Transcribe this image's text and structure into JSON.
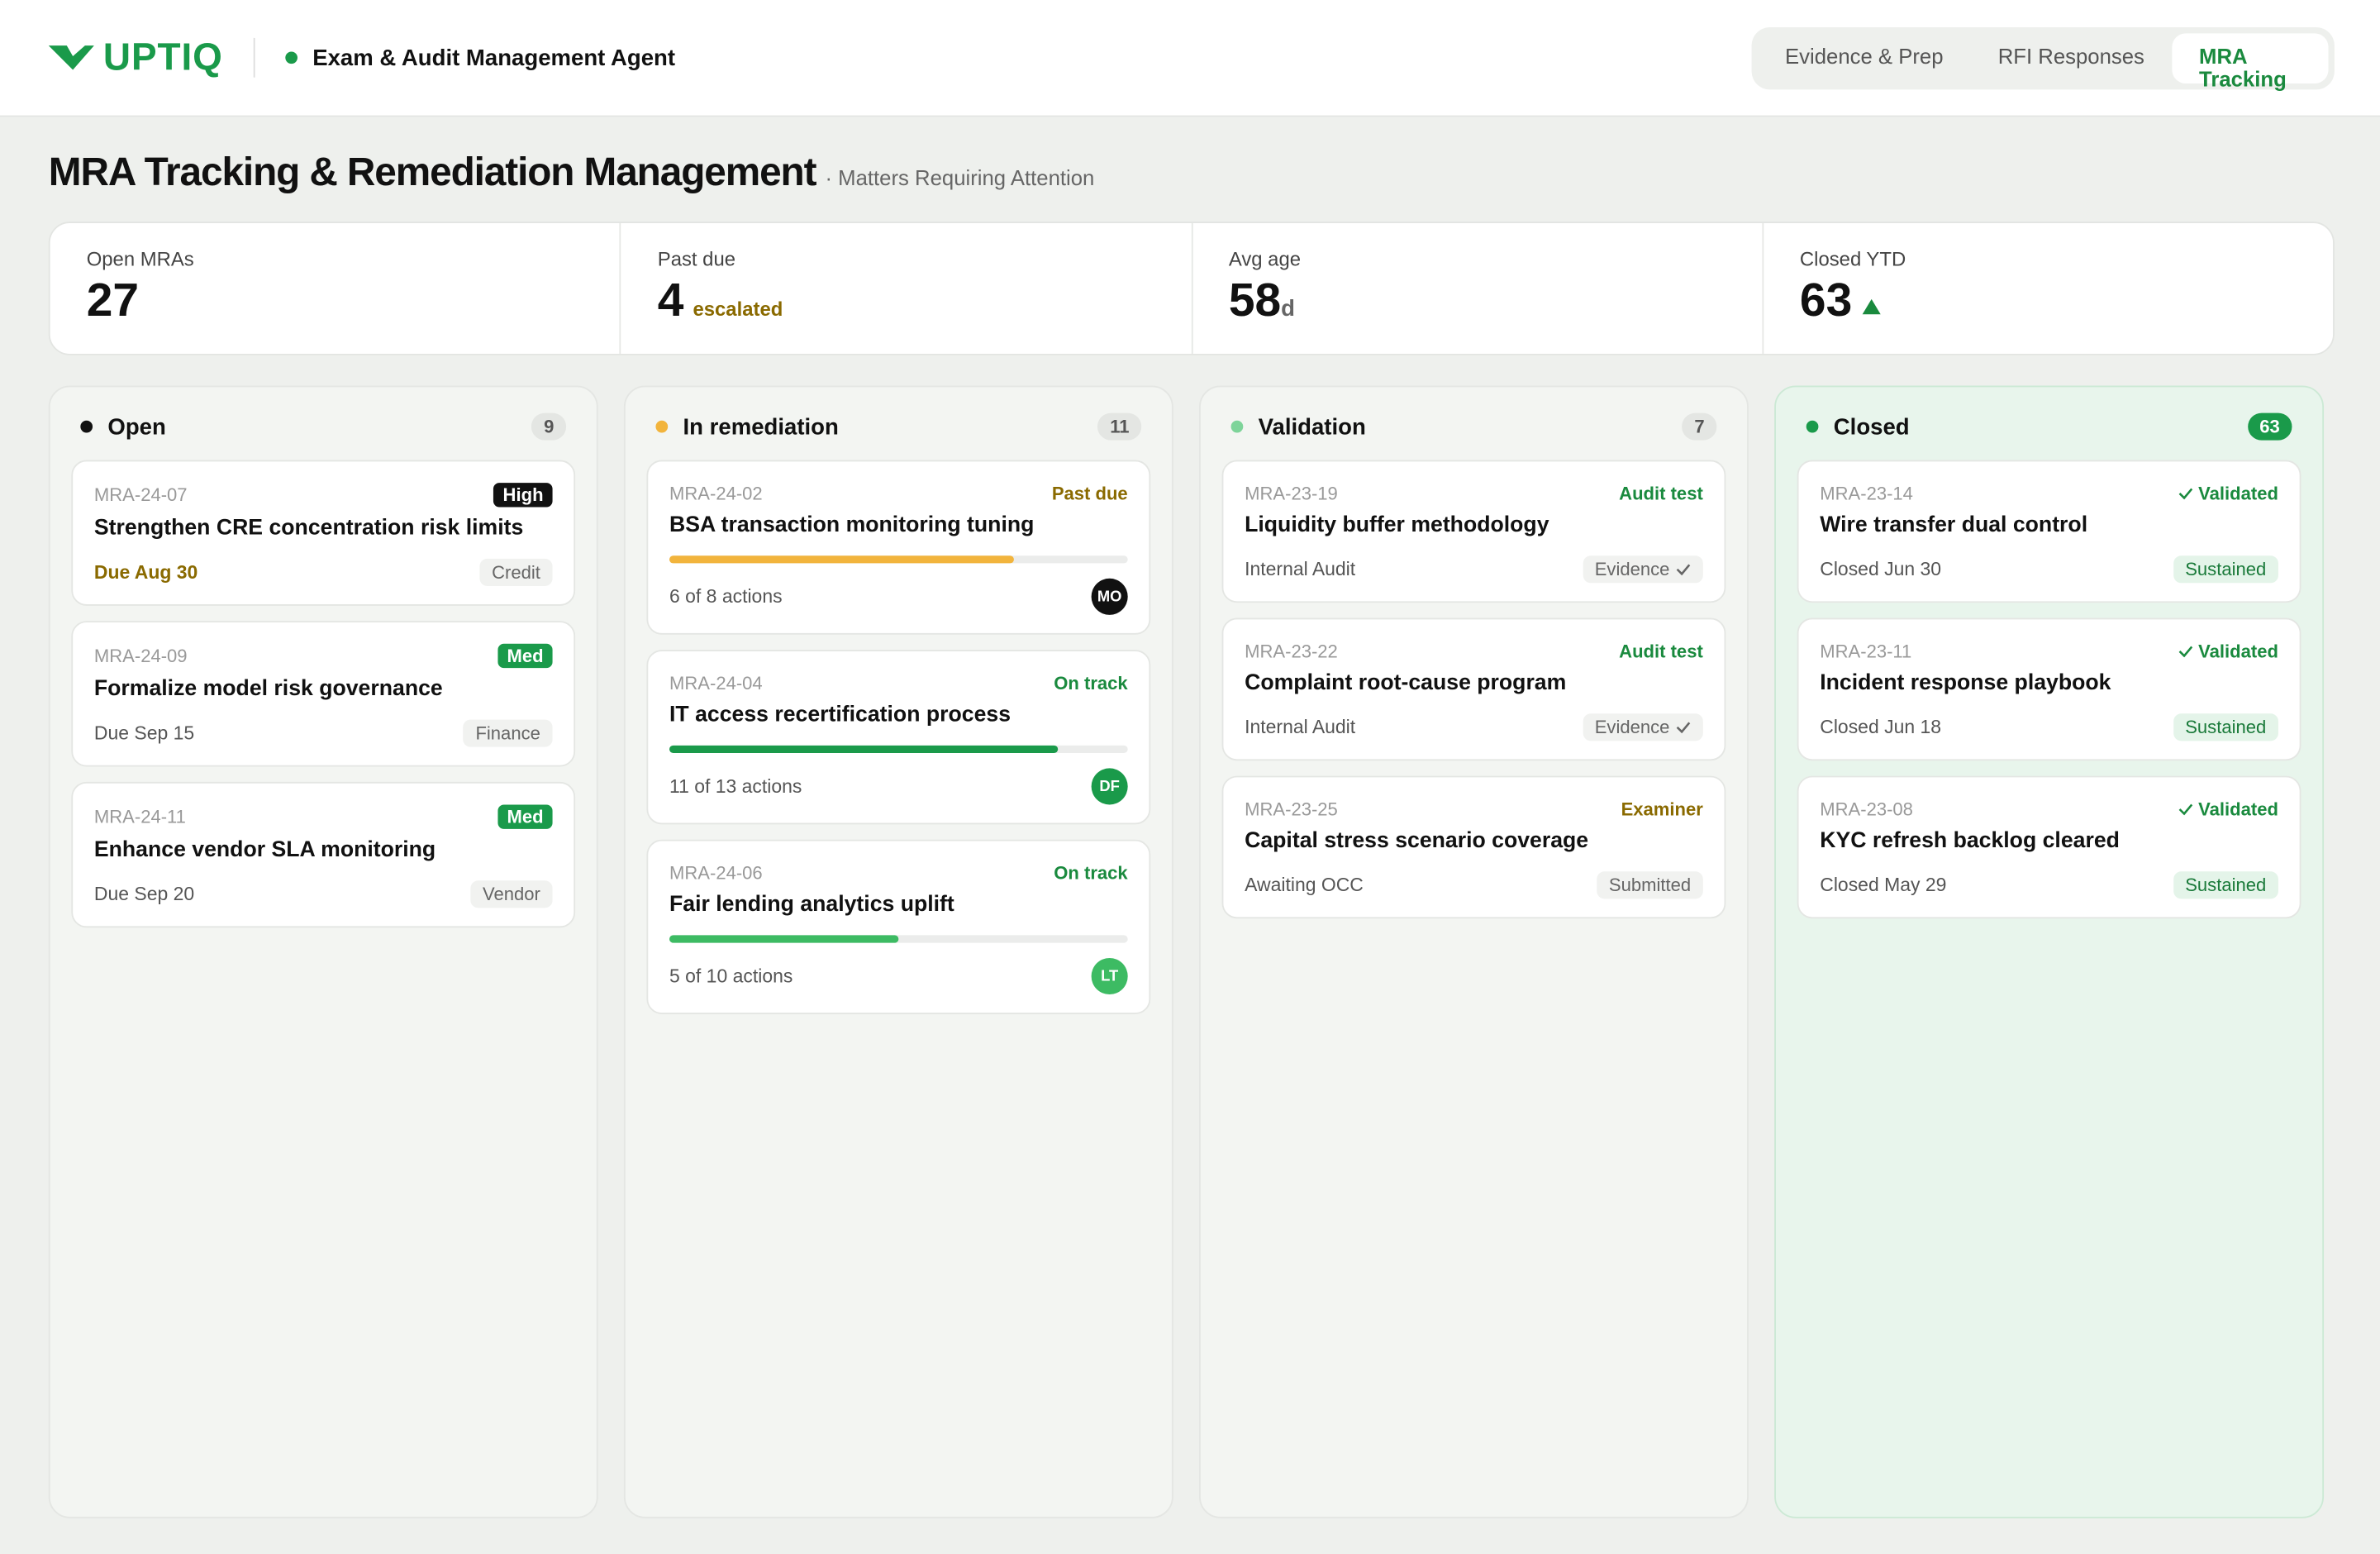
{
  "header": {
    "logo": "UPTIQ",
    "agent": "Exam & Audit Management Agent",
    "tabs": [
      "Evidence & Prep",
      "RFI Responses",
      "MRA Tracking"
    ],
    "active_tab": 2
  },
  "page": {
    "title": "MRA Tracking & Remediation Management",
    "subtitle": "· Matters Requiring Attention"
  },
  "kpis": [
    {
      "label": "Open MRAs",
      "value": "27"
    },
    {
      "label": "Past due",
      "value": "4",
      "note": "escalated"
    },
    {
      "label": "Avg age",
      "value": "58",
      "unit": "d"
    },
    {
      "label": "Closed YTD",
      "value": "63",
      "trend": "up"
    }
  ],
  "columns": [
    {
      "name": "Open",
      "count": "9",
      "dot": "#111",
      "cards": [
        {
          "id": "MRA-24-07",
          "tag": "High",
          "tag_style": "pill",
          "tag_color": "#111",
          "title": "Strengthen CRE concentration risk limits",
          "meta": "Due Aug 30",
          "meta_color": "#8a6a00",
          "chip": "Credit"
        },
        {
          "id": "MRA-24-09",
          "tag": "Med",
          "tag_style": "pill",
          "tag_color": "#1a9a4a",
          "title": "Formalize model risk governance",
          "meta": "Due Sep 15",
          "chip": "Finance"
        },
        {
          "id": "MRA-24-11",
          "tag": "Med",
          "tag_style": "pill",
          "tag_color": "#1a9a4a",
          "title": "Enhance vendor SLA monitoring",
          "meta": "Due Sep 20",
          "chip": "Vendor"
        }
      ]
    },
    {
      "name": "In remediation",
      "count": "11",
      "dot": "#f2b43c",
      "cards": [
        {
          "id": "MRA-24-02",
          "tag": "Past due",
          "tag_color": "#8a6a00",
          "title": "BSA transaction monitoring tuning",
          "done": 6,
          "total": 8,
          "bar_color": "#f2b43c",
          "meta": "6 of 8 actions",
          "avatar": "MO",
          "avatar_color": "#111"
        },
        {
          "id": "MRA-24-04",
          "tag": "On track",
          "tag_color": "#1a8a3e",
          "title": "IT access recertification process",
          "done": 11,
          "total": 13,
          "bar_color": "#1a9a4a",
          "meta": "11 of 13 actions",
          "avatar": "DF",
          "avatar_color": "#1a9a4a"
        },
        {
          "id": "MRA-24-06",
          "tag": "On track",
          "tag_color": "#1a8a3e",
          "title": "Fair lending analytics uplift",
          "done": 5,
          "total": 10,
          "bar_color": "#3dbb63",
          "meta": "5 of 10 actions",
          "avatar": "LT",
          "avatar_color": "#3dbb63"
        }
      ]
    },
    {
      "name": "Validation",
      "count": "7",
      "dot": "#7ed49a",
      "cards": [
        {
          "id": "MRA-23-19",
          "tag": "Audit test",
          "tag_color": "#1a8a3e",
          "title": "Liquidity buffer methodology",
          "meta": "Internal Audit",
          "chip": "Evidence",
          "chip_check": true
        },
        {
          "id": "MRA-23-22",
          "tag": "Audit test",
          "tag_color": "#1a8a3e",
          "title": "Complaint root-cause program",
          "meta": "Internal Audit",
          "chip": "Evidence",
          "chip_check": true
        },
        {
          "id": "MRA-23-25",
          "tag": "Examiner",
          "tag_color": "#8a6a00",
          "title": "Capital stress scenario coverage",
          "meta": "Awaiting OCC",
          "chip": "Submitted"
        }
      ]
    },
    {
      "name": "Closed",
      "count": "63",
      "dot": "#1a9a4a",
      "closed": true,
      "cards": [
        {
          "id": "MRA-23-14",
          "tag": "Validated",
          "tag_check": true,
          "tag_color": "#1a8a3e",
          "title": "Wire transfer dual control",
          "meta": "Closed Jun 30",
          "chip": "Sustained",
          "chip_green": true
        },
        {
          "id": "MRA-23-11",
          "tag": "Validated",
          "tag_check": true,
          "tag_color": "#1a8a3e",
          "title": "Incident response playbook",
          "meta": "Closed Jun 18",
          "chip": "Sustained",
          "chip_green": true
        },
        {
          "id": "MRA-23-08",
          "tag": "Validated",
          "tag_check": true,
          "tag_color": "#1a8a3e",
          "title": "KYC refresh backlog cleared",
          "meta": "Closed May 29",
          "chip": "Sustained",
          "chip_green": true
        }
      ]
    }
  ]
}
